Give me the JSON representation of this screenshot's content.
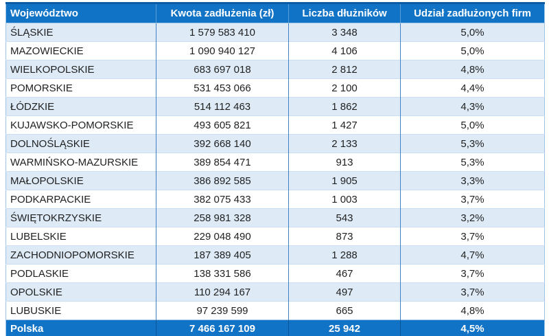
{
  "colors": {
    "header_bg": "#1173C5",
    "header_text": "#FFFFFF",
    "alt_row_bg": "#DEEBF7",
    "row_bg": "#FFFFFF",
    "body_text": "#1F1F1F",
    "vertical_divider": "#3E80C1",
    "horizontal_divider": "#C9DEF2",
    "outer_border": "#9DC3E6",
    "total_row_bg": "#1173C5",
    "total_row_text": "#FFFFFF"
  },
  "chart_data": {
    "type": "table",
    "columns": [
      "Województwo",
      "Kwota zadłużenia (zł)",
      "Liczba dłużników",
      "Udział zadłużonych firm"
    ],
    "rows": [
      [
        "ŚLĄSKIE",
        "1 579 583 410",
        "3 348",
        "5,0%"
      ],
      [
        "MAZOWIECKIE",
        "1 090 940 127",
        "4 106",
        "5,0%"
      ],
      [
        "WIELKOPOLSKIE",
        "683 697 018",
        "2 812",
        "4,8%"
      ],
      [
        "POMORSKIE",
        "531 453 066",
        "2 100",
        "4,4%"
      ],
      [
        "ŁÓDZKIE",
        "514 112 463",
        "1 862",
        "4,3%"
      ],
      [
        "KUJAWSKO-POMORSKIE",
        "493 605 821",
        "1 427",
        "5,0%"
      ],
      [
        "DOLNOŚLĄSKIE",
        "392 668 140",
        "2 133",
        "5,3%"
      ],
      [
        "WARMIŃSKO-MAZURSKIE",
        "389 854 471",
        "913",
        "5,3%"
      ],
      [
        "MAŁOPOLSKIE",
        "386 892 585",
        "1 905",
        "3,3%"
      ],
      [
        "PODKARPACKIE",
        "382 075 433",
        "1 003",
        "3,7%"
      ],
      [
        "ŚWIĘTOKRZYSKIE",
        "258 981 328",
        "543",
        "3,2%"
      ],
      [
        "LUBELSKIE",
        "229 048 490",
        "873",
        "3,7%"
      ],
      [
        "ZACHODNIOPOMORSKIE",
        "187 389 405",
        "1 288",
        "4,7%"
      ],
      [
        "PODLASKIE",
        "138 331 586",
        "467",
        "3,7%"
      ],
      [
        "OPOLSKIE",
        "110 294 167",
        "497",
        "3,7%"
      ],
      [
        "LUBUSKIE",
        "97 239 599",
        "665",
        "4,8%"
      ]
    ],
    "total_row": [
      "Polska",
      "7 466 167 109",
      "25 942",
      "4,5%"
    ],
    "cell_names": [
      "region-name",
      "debt-amount",
      "debtor-count",
      "share-percent"
    ]
  }
}
